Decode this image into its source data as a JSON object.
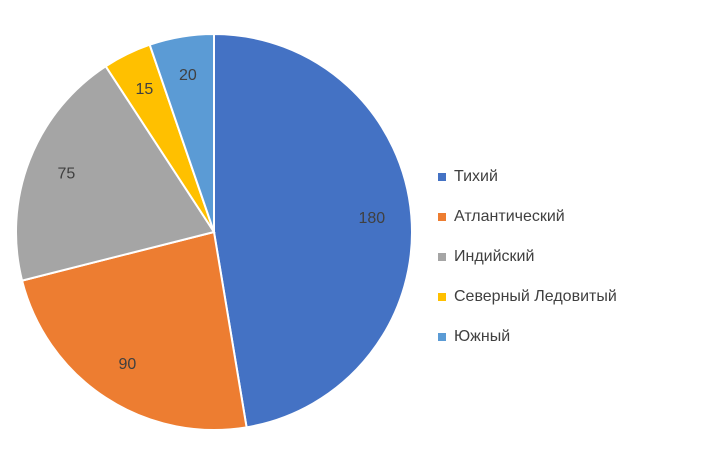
{
  "chart_data": {
    "type": "pie",
    "categories": [
      "Тихий",
      "Атлантический",
      "Индийский",
      "Северный Ледовитый",
      "Южный"
    ],
    "values": [
      180,
      90,
      75,
      15,
      20
    ],
    "colors": [
      "#4472c4",
      "#ed7d31",
      "#a5a5a5",
      "#ffc000",
      "#5b9bd5"
    ],
    "legend": "right"
  }
}
